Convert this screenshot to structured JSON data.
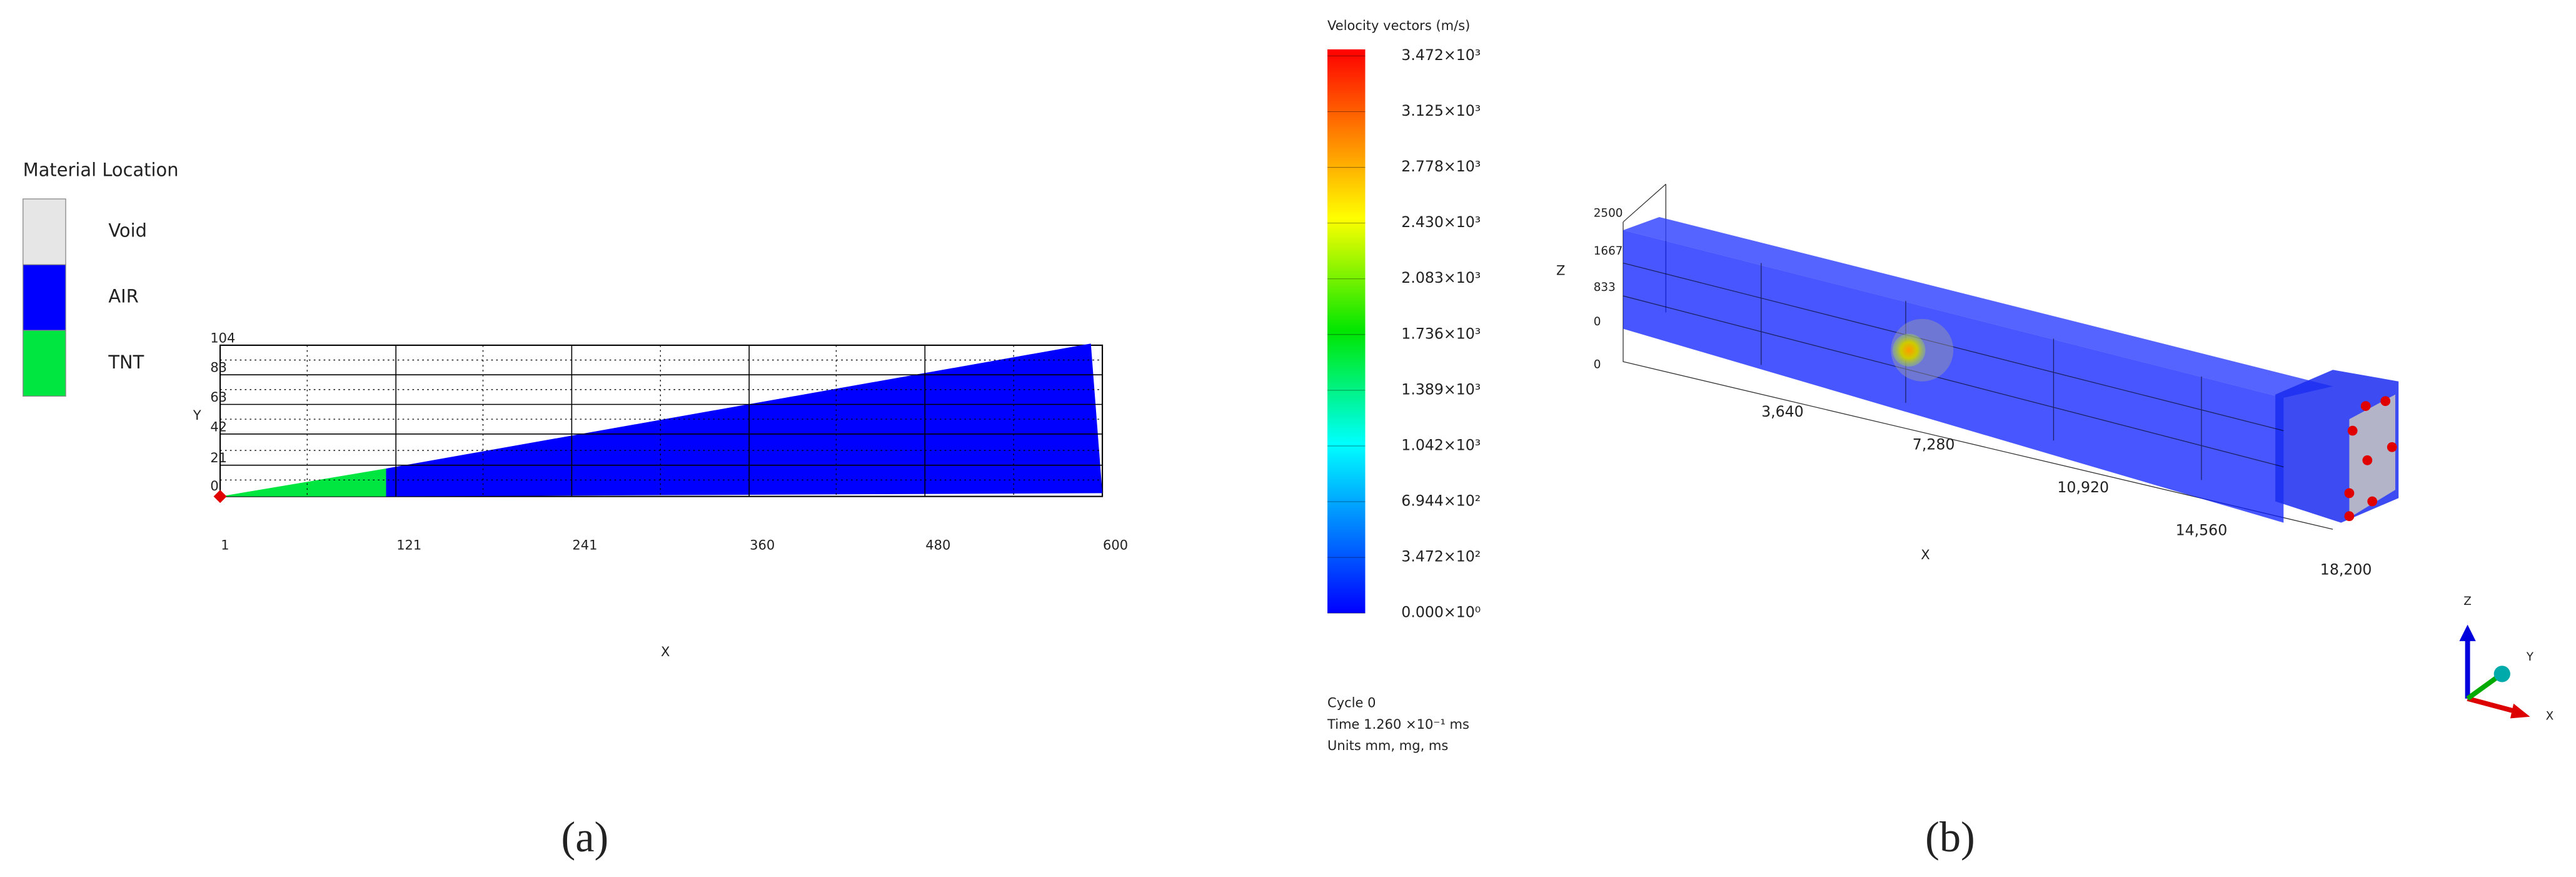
{
  "panel_a": {
    "legend": {
      "title": "Material Location",
      "items": [
        {
          "label": "Void",
          "color": "#e6e6e6"
        },
        {
          "label": "AIR",
          "color": "#0000ff"
        },
        {
          "label": "TNT",
          "color": "#00e640"
        }
      ]
    },
    "y_label": "Y",
    "yticks": [
      "104",
      "83",
      "63",
      "42",
      "21",
      "0"
    ],
    "x_label": "X",
    "xticks": [
      "1",
      "121",
      "241",
      "360",
      "480",
      "600"
    ],
    "caption": "(a)"
  },
  "panel_b": {
    "colorbar": {
      "title": "Velocity vectors (m/s)",
      "labels": [
        "3.472×10³",
        "3.125×10³",
        "2.778×10³",
        "2.430×10³",
        "2.083×10³",
        "1.736×10³",
        "1.389×10³",
        "1.042×10³",
        "6.944×10²",
        "3.472×10²",
        "0.000×10⁰"
      ]
    },
    "info": [
      "Cycle 0",
      "Time 1.260 ×10⁻¹ ms",
      "Units mm, mg, ms"
    ],
    "z_label": "Z",
    "zticks": [
      "2500",
      "1667",
      "833",
      "0",
      "0"
    ],
    "x_label": "X",
    "xticks": [
      "3,640",
      "7,280",
      "10,920",
      "14,560",
      "18,200"
    ],
    "triad": [
      "Z",
      "Y",
      "X"
    ],
    "caption": "(b)"
  }
}
